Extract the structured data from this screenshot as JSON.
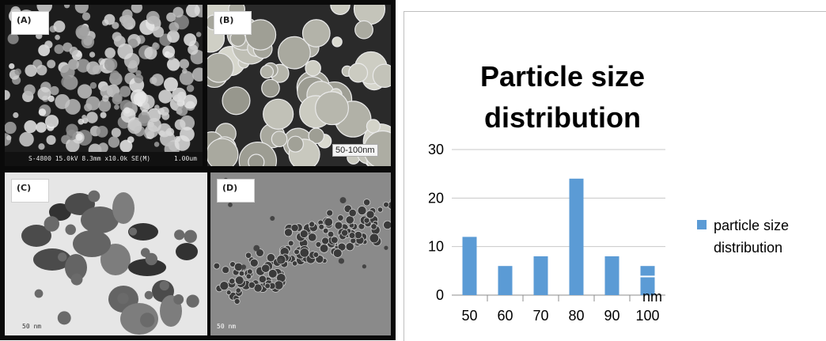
{
  "micrographs": {
    "panels": [
      {
        "label": "(A)",
        "scale_text": "S-4800 15.0kV 8.3mm x10.0k SE(M)",
        "scale_right": "1.00um"
      },
      {
        "label": "(B)",
        "scale_box": "50-100nm"
      },
      {
        "label": "(C)",
        "scale_text": "50 nm"
      },
      {
        "label": "(D)",
        "scale_text": "50 nm"
      }
    ]
  },
  "chart_data": {
    "type": "bar",
    "title": "Particle size distribution",
    "categories": [
      "50",
      "60",
      "70",
      "80",
      "90",
      "100"
    ],
    "series": [
      {
        "name": "particle size distribution",
        "values": [
          12,
          6,
          8,
          24,
          8,
          6
        ],
        "color": "#5b9bd5"
      }
    ],
    "xlabel": "nm",
    "ylabel": "",
    "yticks": [
      "0",
      "10",
      "20",
      "30"
    ],
    "ylim": [
      0,
      30
    ],
    "grid": true,
    "legend_position": "right"
  }
}
